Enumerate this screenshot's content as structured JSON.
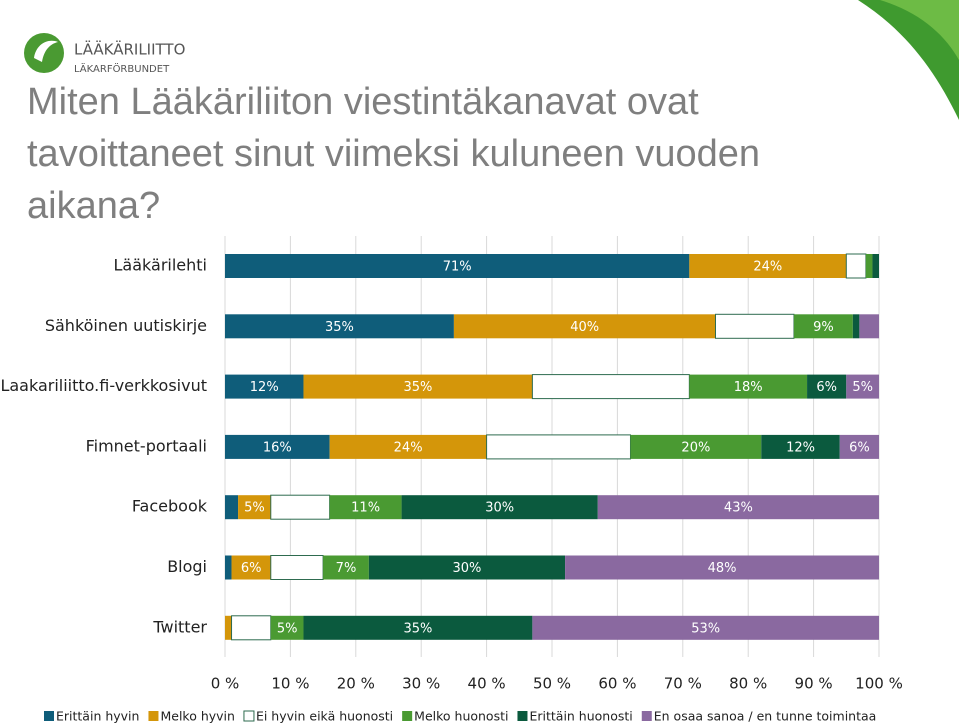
{
  "logo": {
    "name": "LÄÄKÄRILIITTO",
    "subname": "LÄKARFÖRBUNDET"
  },
  "chart_data": {
    "type": "stacked-barh",
    "title_lines": [
      "Miten Lääkäriliiton viestintäkanavat ovat",
      "tavoittaneet sinut viimeksi kuluneen vuoden",
      "aikana?"
    ],
    "categories": [
      "Lääkärilehti",
      "Sähköinen uutiskirje",
      "Laakariliitto.fi-verkkosivut",
      "Fimnet-portaali",
      "Facebook",
      "Blogi",
      "Twitter"
    ],
    "series": [
      {
        "name": "Erittäin hyvin",
        "color": "#0f5d7a",
        "values": [
          71,
          35,
          12,
          16,
          2,
          1,
          0
        ],
        "value_labels": [
          "71%",
          "35%",
          "12%",
          "16%",
          null,
          null,
          null
        ]
      },
      {
        "name": "Melko hyvin",
        "color": "#d4960a",
        "values": [
          24,
          40,
          35,
          24,
          5,
          6,
          1
        ],
        "value_labels": [
          "24%",
          "40%",
          "35%",
          "24%",
          "5%",
          "6%",
          null
        ]
      },
      {
        "name": "Ei hyvin eikä huonosti",
        "color": "#ffffff",
        "values": [
          3,
          12,
          24,
          22,
          9,
          8,
          6
        ],
        "value_labels": [
          null,
          null,
          null,
          null,
          null,
          null,
          null
        ]
      },
      {
        "name": "Melko huonosti",
        "color": "#4a9a32",
        "values": [
          1,
          9,
          18,
          20,
          11,
          7,
          5
        ],
        "value_labels": [
          null,
          "9%",
          "18%",
          "20%",
          "11%",
          "7%",
          "5%"
        ]
      },
      {
        "name": "Erittäin huonosti",
        "color": "#0b5a3e",
        "values": [
          1,
          1,
          6,
          12,
          30,
          30,
          35
        ],
        "value_labels": [
          null,
          null,
          "6%",
          "12%",
          "30%",
          "30%",
          "35%"
        ]
      },
      {
        "name": "En osaa sanoa / en tunne toimintaa",
        "color": "#8a69a0",
        "values": [
          0,
          3,
          5,
          6,
          43,
          48,
          53
        ],
        "value_labels": [
          null,
          null,
          "5%",
          "6%",
          "43%",
          "48%",
          "53%"
        ]
      }
    ],
    "xlim": [
      0,
      100
    ],
    "xticks": [
      {
        "value": 0,
        "label": "0 %"
      },
      {
        "value": 10,
        "label": "10 %"
      },
      {
        "value": 20,
        "label": "20 %"
      },
      {
        "value": 30,
        "label": "30 %"
      },
      {
        "value": 40,
        "label": "40 %"
      },
      {
        "value": 50,
        "label": "50 %"
      },
      {
        "value": 60,
        "label": "60 %"
      },
      {
        "value": 70,
        "label": "70 %"
      },
      {
        "value": 80,
        "label": "80 %"
      },
      {
        "value": 90,
        "label": "90 %"
      },
      {
        "value": 100,
        "label": "100 %"
      }
    ],
    "grid": true,
    "legend": "bottom"
  }
}
